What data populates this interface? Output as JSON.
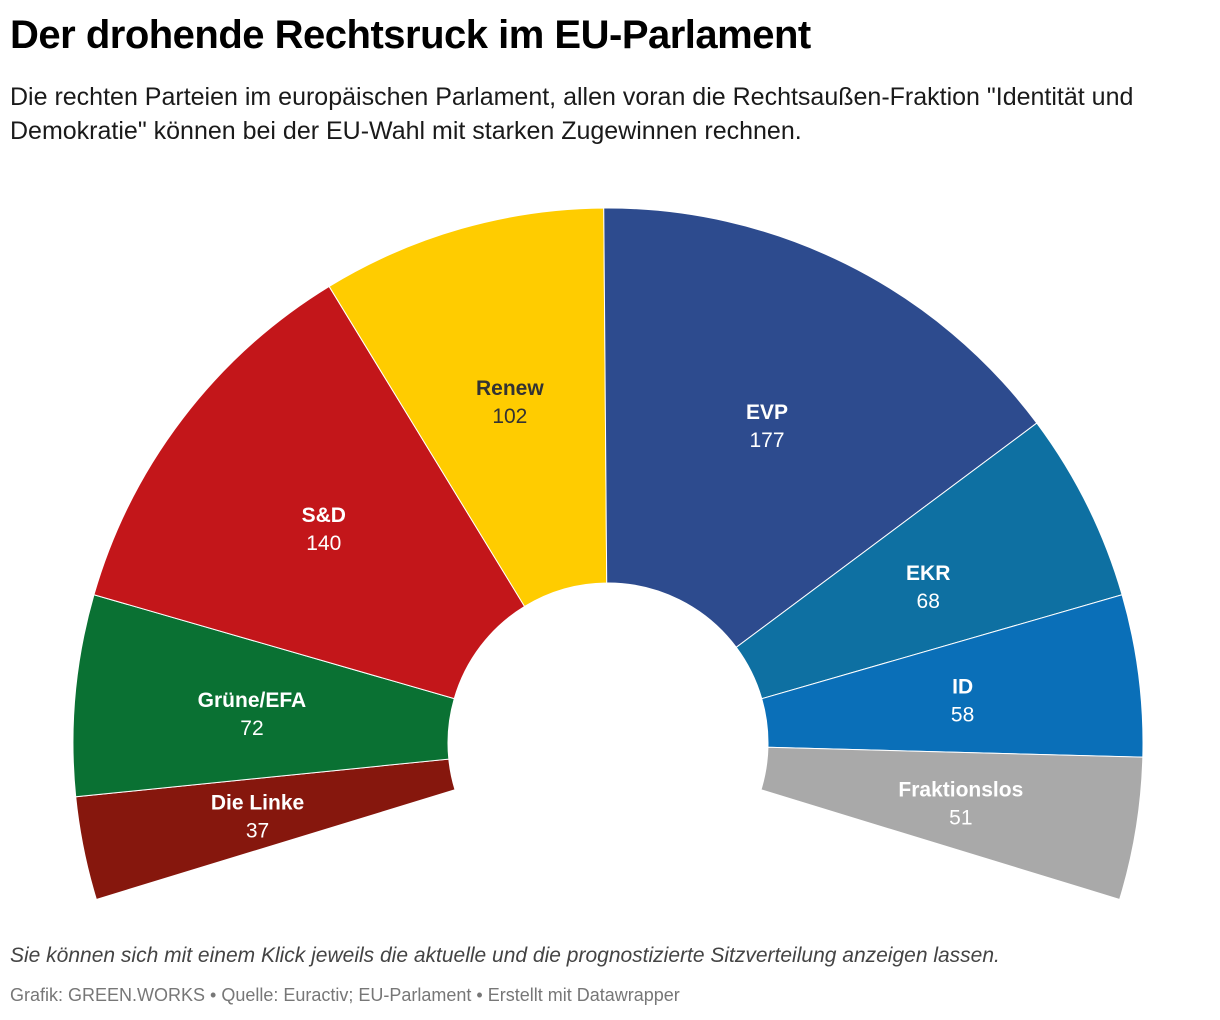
{
  "header": {
    "title": "Der drohende Rechtsruck im EU-Parlament",
    "subtitle": "Die rechten Parteien im europäischen Parlament, allen voran die Rechtsaußen-Fraktion \"Identität und Demokratie\" können bei der EU-Wahl mit starken Zugewinnen rechnen."
  },
  "chart_data": {
    "type": "pie",
    "variant": "parliament-semicircle",
    "series": [
      {
        "name": "Die Linke",
        "value": 37,
        "color": "#86170d"
      },
      {
        "name": "Grüne/EFA",
        "value": 72,
        "color": "#0a7133"
      },
      {
        "name": "S&D",
        "value": 140,
        "color": "#c3161a"
      },
      {
        "name": "Renew",
        "value": 102,
        "color": "#ffcc00"
      },
      {
        "name": "EVP",
        "value": 177,
        "color": "#2d4b8e"
      },
      {
        "name": "EKR",
        "value": 68,
        "color": "#0e70a2"
      },
      {
        "name": "ID",
        "value": 58,
        "color": "#0a6fb8"
      },
      {
        "name": "Fraktionslos",
        "value": 51,
        "color": "#a9a9a9"
      }
    ]
  },
  "footer": {
    "notes": "Sie können sich mit einem Klick jeweils die aktuelle und die prognostizierte Sitzverteilung anzeigen lassen.",
    "byline": "Grafik: GREEN.WORKS • Quelle: Euractiv; EU-Parlament • Erstellt mit Datawrapper"
  }
}
